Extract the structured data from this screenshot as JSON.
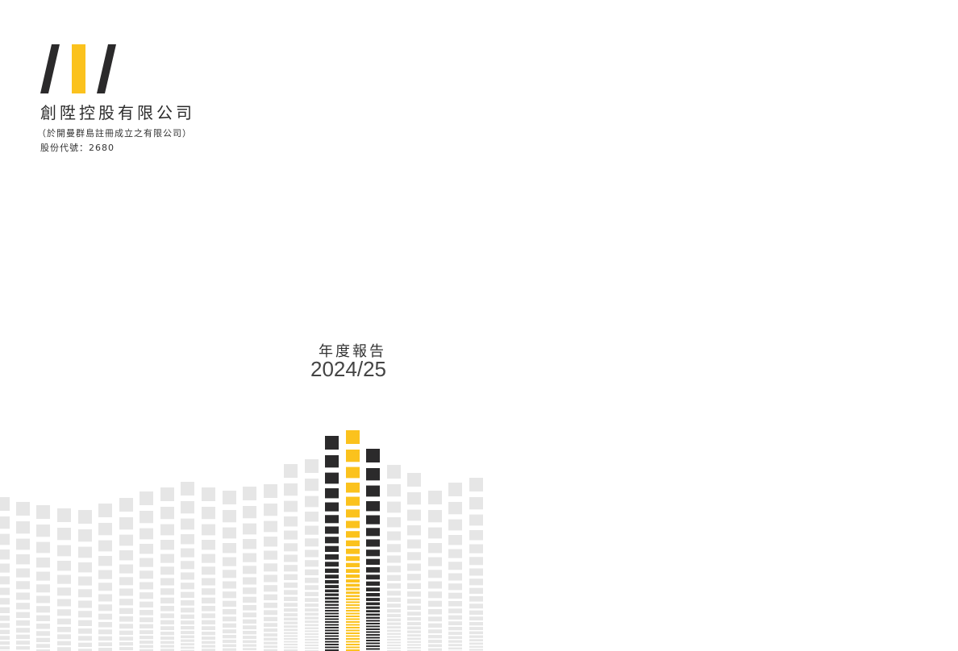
{
  "cover": {
    "company_name": "創陞控股有限公司",
    "incorporation": "（於開曼群島註冊成立之有限公司）",
    "stock_code": "股份代號：2680",
    "report_title": "年度報告",
    "report_year": "2024/25"
  },
  "colors": {
    "accent": "#fbc21d",
    "dark": "#2b2a2b",
    "light": "#e6e6e6"
  }
}
